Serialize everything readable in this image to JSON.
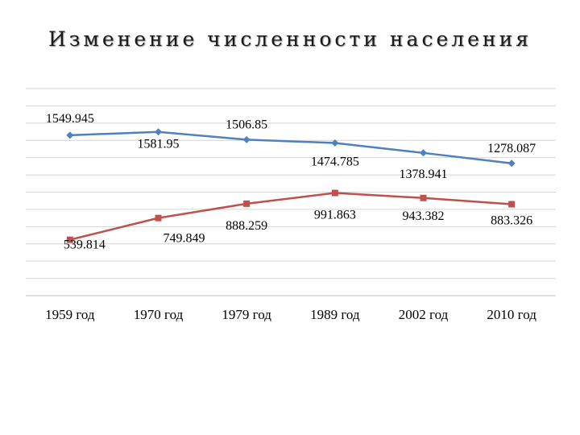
{
  "title": "Изменение численности населения",
  "chart_data": {
    "type": "line",
    "categories": [
      "1959 год",
      "1970 год",
      "1979 год",
      "1989 год",
      "2002 год",
      "2010 год"
    ],
    "series": [
      {
        "values": [
          1549.945,
          1581.95,
          1506.85,
          1474.785,
          1378.941,
          1278.087
        ],
        "labels": [
          "1549.945",
          "1581.95",
          "1506.85",
          "1474.785",
          "1378.941",
          "1278.087"
        ],
        "color": "#4f81bd",
        "marker": "diamond"
      },
      {
        "values": [
          539.814,
          749.849,
          888.259,
          991.863,
          943.382,
          883.326
        ],
        "labels": [
          "539.814",
          "749.849",
          "888.259",
          "991.863",
          "943.382",
          "883.326"
        ],
        "color": "#c0504d",
        "marker": "square"
      }
    ],
    "ylim": [
      0,
      2000
    ],
    "grid": true,
    "legend": "none"
  }
}
